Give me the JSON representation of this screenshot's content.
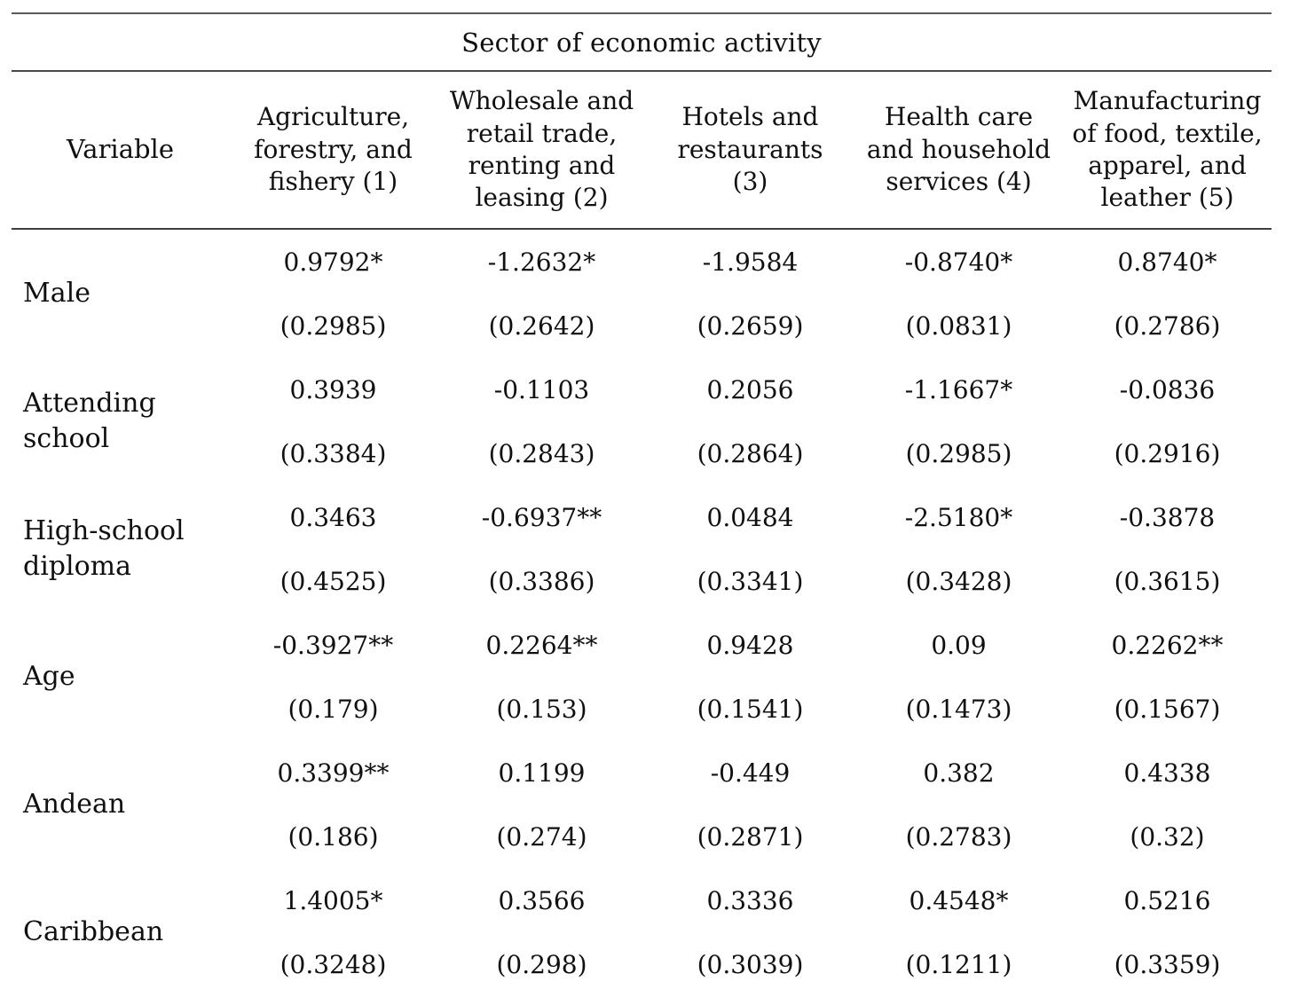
{
  "table": {
    "spanner": "Sector of economic activity",
    "variable_header": "Variable",
    "column_headers": [
      "Agriculture,\nforestry, and\nfishery (1)",
      "Wholesale and\nretail trade,\nrenting and\nleasing (2)",
      "Hotels and\nrestaurants\n(3)",
      "Health care\nand household\nservices (4)",
      "Manufacturing\nof food, textile,\napparel, and\nleather (5)"
    ],
    "rows": [
      {
        "variable": "Male",
        "values": [
          "0.9792*",
          "-1.2632*",
          "-1.9584",
          "-0.8740*",
          "0.8740*"
        ],
        "std_errors": [
          "(0.2985)",
          "(0.2642)",
          "(0.2659)",
          "(0.0831)",
          "(0.2786)"
        ]
      },
      {
        "variable": "Attending\nschool",
        "values": [
          "0.3939",
          "-0.1103",
          "0.2056",
          "-1.1667*",
          "-0.0836"
        ],
        "std_errors": [
          "(0.3384)",
          "(0.2843)",
          "(0.2864)",
          "(0.2985)",
          "(0.2916)"
        ]
      },
      {
        "variable": "High-school\ndiploma",
        "values": [
          "0.3463",
          "-0.6937**",
          "0.0484",
          "-2.5180*",
          "-0.3878"
        ],
        "std_errors": [
          "(0.4525)",
          "(0.3386)",
          "(0.3341)",
          "(0.3428)",
          "(0.3615)"
        ]
      },
      {
        "variable": "Age",
        "values": [
          "-0.3927**",
          "0.2264**",
          "0.9428",
          "0.09",
          "0.2262**"
        ],
        "std_errors": [
          "(0.179)",
          "(0.153)",
          "(0.1541)",
          "(0.1473)",
          "(0.1567)"
        ]
      },
      {
        "variable": "Andean",
        "values": [
          "0.3399**",
          "0.1199",
          "-0.449",
          "0.382",
          "0.4338"
        ],
        "std_errors": [
          "(0.186)",
          "(0.274)",
          "(0.2871)",
          "(0.2783)",
          "(0.32)"
        ]
      },
      {
        "variable": "Caribbean",
        "values": [
          "1.4005*",
          "0.3566",
          "0.3336",
          "0.4548*",
          "0.5216"
        ],
        "std_errors": [
          "(0.3248)",
          "(0.298)",
          "(0.3039)",
          "(0.1211)",
          "(0.3359)"
        ]
      }
    ]
  },
  "colors": {
    "rule": "#4a4a4a",
    "text": "#101010",
    "background": "#ffffff"
  }
}
